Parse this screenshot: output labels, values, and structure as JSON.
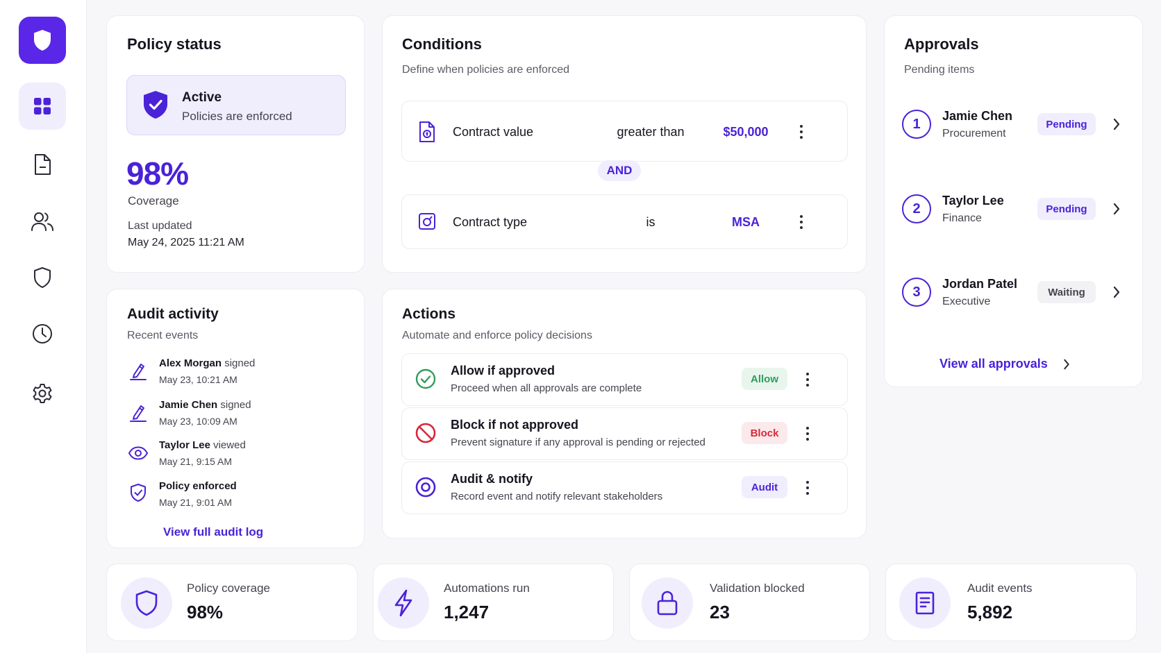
{
  "colors": {
    "accent": "#5a26e8",
    "accent_soft": "#f0edfd",
    "allow": "#2f9d5c",
    "block": "#d6283a",
    "text": "#15151f",
    "muted": "#5a5a66"
  },
  "sidebar": {
    "logo_icon": "shield-icon",
    "items": [
      {
        "icon": "grid-icon",
        "active": true
      },
      {
        "icon": "document-icon",
        "active": false
      },
      {
        "icon": "users-icon",
        "active": false
      },
      {
        "icon": "shield-icon",
        "active": false
      },
      {
        "icon": "clock-icon",
        "active": false
      },
      {
        "icon": "gear-icon",
        "active": false
      }
    ]
  },
  "policy_status": {
    "title": "Policy status",
    "status_title": "Active",
    "status_text": "Policies are enforced",
    "coverage_value": "98%",
    "coverage_label": "Coverage",
    "updated_label": "Last updated",
    "updated_value": "May 24, 2025 11:21 AM"
  },
  "conditions": {
    "title": "Conditions",
    "subtitle": "Define when policies are enforced",
    "connector": "AND",
    "rows": [
      {
        "icon": "contract-value-icon",
        "field": "Contract value",
        "operator": "greater than",
        "value": "$50,000"
      },
      {
        "icon": "contract-type-icon",
        "field": "Contract type",
        "operator": "is",
        "value": "MSA"
      }
    ]
  },
  "approvals": {
    "title": "Approvals",
    "subtitle": "Pending items",
    "items": [
      {
        "step": "1",
        "name": "Jamie Chen",
        "role": "Procurement",
        "status": "Pending"
      },
      {
        "step": "2",
        "name": "Taylor Lee",
        "role": "Finance",
        "status": "Pending"
      },
      {
        "step": "3",
        "name": "Jordan Patel",
        "role": "Executive",
        "status": "Waiting"
      }
    ],
    "view_all": "View all approvals"
  },
  "audit": {
    "title": "Audit activity",
    "subtitle": "Recent events",
    "events": [
      {
        "icon": "pen-icon",
        "actor": "Alex Morgan",
        "action": "signed",
        "time": "May 23, 10:21 AM"
      },
      {
        "icon": "pen-icon",
        "actor": "Jamie Chen",
        "action": "signed",
        "time": "May 23, 10:09 AM"
      },
      {
        "icon": "eye-icon",
        "actor": "Taylor Lee",
        "action": "viewed",
        "time": "May 21, 9:15 AM"
      },
      {
        "icon": "shield-check-icon",
        "actor": "Policy enforced",
        "action": "",
        "time": "May 21, 9:01 AM"
      }
    ],
    "view_log": "View full audit log"
  },
  "actions": {
    "title": "Actions",
    "subtitle": "Automate and enforce policy decisions",
    "items": [
      {
        "icon": "check-circle-icon",
        "title": "Allow if approved",
        "desc": "Proceed when all approvals are complete",
        "badge": "Allow"
      },
      {
        "icon": "block-icon",
        "title": "Block if not approved",
        "desc": "Prevent signature if any approval is pending or rejected",
        "badge": "Block"
      },
      {
        "icon": "target-icon",
        "title": "Audit & notify",
        "desc": "Record event and notify relevant stakeholders",
        "badge": "Audit"
      }
    ]
  },
  "stats": [
    {
      "icon": "shield-icon",
      "label": "Policy coverage",
      "value": "98%"
    },
    {
      "icon": "lightning-icon",
      "label": "Automations run",
      "value": "1,247"
    },
    {
      "icon": "lock-icon",
      "label": "Validation blocked",
      "value": "23"
    },
    {
      "icon": "document-list-icon",
      "label": "Audit events",
      "value": "5,892"
    }
  ]
}
